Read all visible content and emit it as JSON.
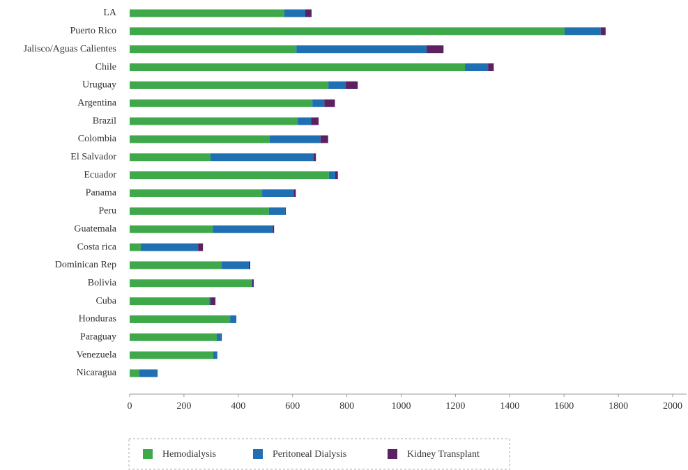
{
  "chart_data": {
    "type": "stacked-bar-horizontal",
    "categories": [
      "LA",
      "Puerto Rico",
      "Jalisco/Aguas Calientes",
      "Chile",
      "Uruguay",
      "Argentina",
      "Brazil",
      "Colombia",
      "El Salvador",
      "Ecuador",
      "Panama",
      "Peru",
      "Guatemala",
      "Costa rica",
      "Dominican Rep",
      "Bolivia",
      "Cuba",
      "Honduras",
      "Paraguay",
      "Venezuela",
      "Nicaragua"
    ],
    "series": [
      {
        "name": "Hemodialysis",
        "color": "#3ea84a",
        "values": [
          570,
          1602,
          614,
          1235,
          732,
          673,
          619,
          516,
          298,
          734,
          488,
          513,
          306,
          41,
          339,
          449,
          293,
          370,
          321,
          308,
          36
        ]
      },
      {
        "name": "Peritoneal Dialysis",
        "color": "#1f6fb2",
        "values": [
          77,
          133,
          480,
          85,
          64,
          44,
          49,
          187,
          380,
          23,
          116,
          59,
          221,
          211,
          100,
          3,
          5,
          23,
          15,
          15,
          67
        ]
      },
      {
        "name": "Kidney Transplant",
        "color": "#5c2160",
        "values": [
          23,
          18,
          62,
          21,
          44,
          39,
          28,
          28,
          8,
          10,
          8,
          3,
          5,
          18,
          5,
          5,
          18,
          0,
          3,
          0,
          0
        ]
      }
    ],
    "xlim": [
      0,
      2000
    ],
    "xticks": [
      0,
      200,
      400,
      600,
      800,
      1000,
      1200,
      1400,
      1600,
      1800,
      2000
    ],
    "legend": "bottom"
  }
}
